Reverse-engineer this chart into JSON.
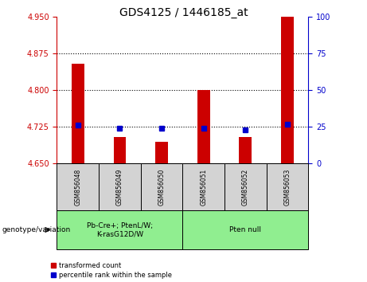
{
  "title": "GDS4125 / 1446185_at",
  "samples": [
    "GSM856048",
    "GSM856049",
    "GSM856050",
    "GSM856051",
    "GSM856052",
    "GSM856053"
  ],
  "transformed_counts": [
    4.855,
    4.705,
    4.695,
    4.8,
    4.705,
    4.95
  ],
  "percentile_ranks": [
    26,
    24,
    24,
    24,
    23,
    27
  ],
  "ylim_left": [
    4.65,
    4.95
  ],
  "ylim_right": [
    0,
    100
  ],
  "yticks_left": [
    4.65,
    4.725,
    4.8,
    4.875,
    4.95
  ],
  "yticks_right": [
    0,
    25,
    50,
    75,
    100
  ],
  "bar_color": "#cc0000",
  "dot_color": "#0000cc",
  "bar_base": 4.65,
  "groups": [
    {
      "label": "Pb-Cre+; PtenL/W;\nK-rasG12D/W",
      "samples": [
        0,
        1,
        2
      ],
      "color": "#90ee90"
    },
    {
      "label": "Pten null",
      "samples": [
        3,
        4,
        5
      ],
      "color": "#90ee90"
    }
  ],
  "group_label": "genotype/variation",
  "legend_items": [
    {
      "label": "transformed count",
      "color": "#cc0000"
    },
    {
      "label": "percentile rank within the sample",
      "color": "#0000cc"
    }
  ],
  "sample_box_color": "#d3d3d3",
  "right_axis_color": "#0000cc",
  "left_axis_color": "#cc0000",
  "tick_fontsize": 7,
  "title_fontsize": 10
}
